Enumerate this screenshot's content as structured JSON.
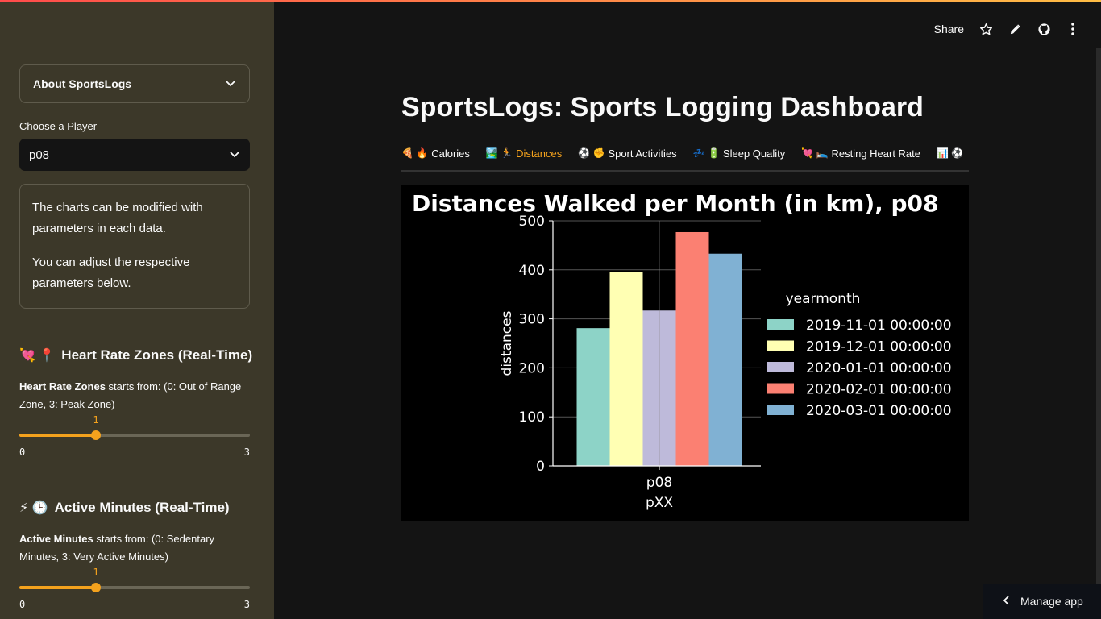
{
  "header": {
    "share_label": "Share",
    "icons": [
      "star-icon",
      "pencil-icon",
      "github-icon",
      "kebab-menu-icon"
    ]
  },
  "sidebar": {
    "expander_label": "About SportsLogs",
    "select_label": "Choose a Player",
    "select_value": "p08",
    "info": {
      "p1": "The charts can be modified with parameters in each data.",
      "p2": "You can adjust the respective parameters below."
    },
    "heart_rate": {
      "emoji": "💘 📍",
      "title": "Heart Rate Zones (Real-Time)",
      "desc_bold": "Heart Rate Zones",
      "desc_rest": " starts from: (0: Out of Range Zone, 3: Peak Zone)",
      "value": "1",
      "min": "0",
      "max": "3",
      "fraction": 0.333
    },
    "active_minutes": {
      "emoji": "⚡ 🕒",
      "title": "Active Minutes (Real-Time)",
      "desc_bold": "Active Minutes",
      "desc_rest": " starts from: (0: Sedentary Minutes, 3: Very Active Minutes)",
      "value": "1",
      "min": "0",
      "max": "3",
      "fraction": 0.333
    }
  },
  "main": {
    "title": "SportsLogs: Sports Logging Dashboard",
    "tabs": [
      {
        "icon": "🍕 🔥",
        "label": "Calories"
      },
      {
        "icon": "🏞️ 🏃",
        "label": "Distances"
      },
      {
        "icon": "⚽ ✊",
        "label": "Sport Activities"
      },
      {
        "icon": "💤 🔋",
        "label": "Sleep Quality"
      },
      {
        "icon": "💘 🛌",
        "label": "Resting Heart Rate"
      },
      {
        "icon": "📊 ⚽",
        "label": ""
      }
    ],
    "active_tab": 1
  },
  "chart_data": {
    "type": "bar",
    "title": "Distances Walked per Month (in km), p08",
    "xlabel": "pXX",
    "ylabel": "distances",
    "categories": [
      "p08"
    ],
    "ylim": [
      0,
      500
    ],
    "yticks": [
      "0",
      "100",
      "200",
      "300",
      "400",
      "500"
    ],
    "legend_title": "yearmonth",
    "legend_position": "right",
    "grid": true,
    "series": [
      {
        "name": "2019-11-01 00:00:00",
        "values": [
          281
        ],
        "color": "#8dd3c7"
      },
      {
        "name": "2019-12-01 00:00:00",
        "values": [
          395
        ],
        "color": "#ffffb3"
      },
      {
        "name": "2020-01-01 00:00:00",
        "values": [
          317
        ],
        "color": "#bebada"
      },
      {
        "name": "2020-02-01 00:00:00",
        "values": [
          477
        ],
        "color": "#fb8072"
      },
      {
        "name": "2020-03-01 00:00:00",
        "values": [
          433
        ],
        "color": "#80b1d3"
      }
    ]
  },
  "footer": {
    "manage_label": "Manage app"
  }
}
